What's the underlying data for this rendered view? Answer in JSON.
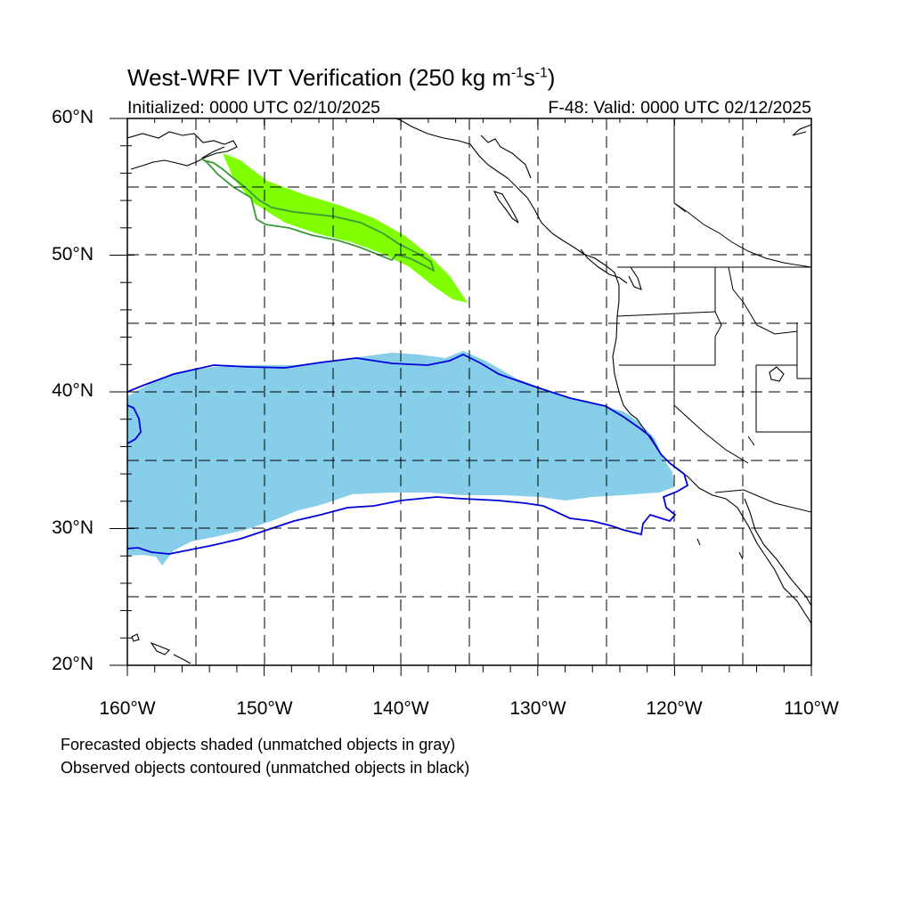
{
  "title": {
    "main": "West-WRF IVT Verification (250 kg m",
    "exp1": "-1",
    "mid": "s",
    "exp2": "-1",
    "end": ")"
  },
  "subtitle_left": "Initialized: 0000 UTC 02/10/2025",
  "subtitle_right": "F-48: Valid: 0000 UTC 02/12/2025",
  "lat_labels": [
    "60°N",
    "50°N",
    "40°N",
    "30°N",
    "20°N"
  ],
  "lon_labels": [
    "160°W",
    "150°W",
    "140°W",
    "130°W",
    "120°W",
    "110°W"
  ],
  "notes": [
    "Forecasted objects shaded (unmatched objects in gray)",
    "Observed objects contoured (unmatched objects in black)"
  ],
  "extent": {
    "lon_min": -160,
    "lon_max": -110,
    "lat_min": 20,
    "lat_max": 60
  },
  "colors": {
    "forecast_object_1": "#87CEEB",
    "observed_object_1": "#0000DD",
    "forecast_object_2": "#7FFF00",
    "observed_object_2": "#3A9A3A",
    "coastline": "#000000",
    "gridline": "#000000"
  }
}
